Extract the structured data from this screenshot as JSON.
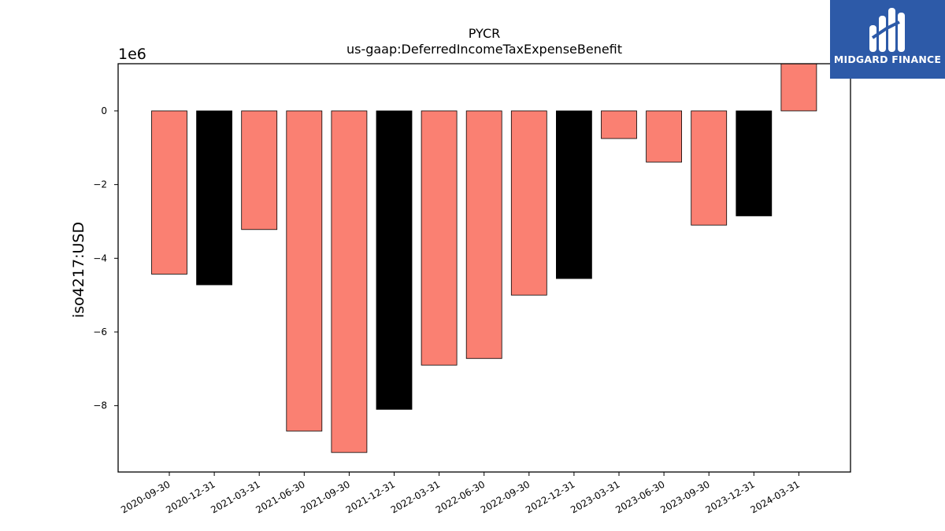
{
  "chart_data": {
    "type": "bar",
    "title": "PYCR",
    "subtitle": "us-gaap:DeferredIncomeTaxExpenseBenefit",
    "xlabel": "",
    "ylabel": "iso4217:USD",
    "y_scale_label": "1e6",
    "y_scale": 1000000,
    "ylim": [
      -9.8,
      1.28
    ],
    "yticks": [
      0,
      -2,
      -4,
      -6,
      -8
    ],
    "grid": false,
    "categories": [
      "2020-09-30",
      "2020-12-31",
      "2021-03-31",
      "2021-06-30",
      "2021-09-30",
      "2021-12-31",
      "2022-03-31",
      "2022-06-30",
      "2022-09-30",
      "2022-12-31",
      "2023-03-31",
      "2023-06-30",
      "2023-09-30",
      "2023-12-31",
      "2024-03-31"
    ],
    "values": [
      -4.43,
      -4.72,
      -3.22,
      -8.69,
      -9.27,
      -8.1,
      -6.9,
      -6.72,
      -5.0,
      -4.55,
      -0.75,
      -1.39,
      -3.1,
      -2.85,
      1.28
    ],
    "bar_colors": [
      "#fa8072",
      "#000000",
      "#fa8072",
      "#fa8072",
      "#fa8072",
      "#000000",
      "#fa8072",
      "#fa8072",
      "#fa8072",
      "#000000",
      "#fa8072",
      "#fa8072",
      "#fa8072",
      "#000000",
      "#fa8072"
    ]
  },
  "logo": {
    "name": "MIDGARD FINANCE",
    "background": "#2d5aa8"
  }
}
